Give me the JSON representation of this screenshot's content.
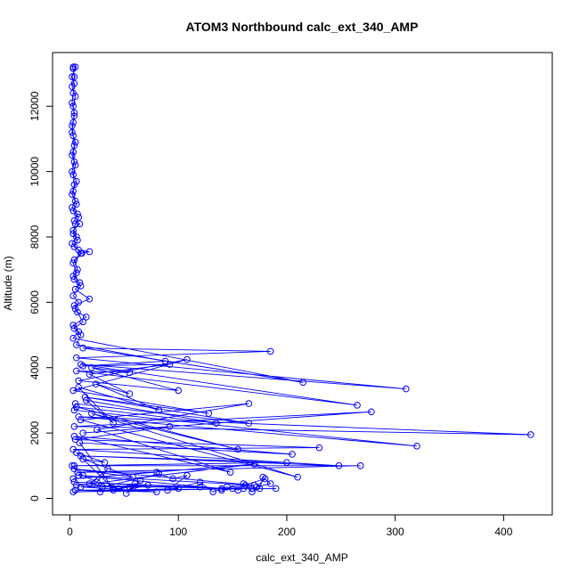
{
  "chart_data": {
    "type": "line",
    "title": "ATOM3 Northbound calc_ext_340_AMP",
    "xlabel": "calc_ext_340_AMP",
    "ylabel": "Altitude (m)",
    "xlim": [
      0,
      440
    ],
    "ylim": [
      0,
      13200
    ],
    "x_ticks": [
      0,
      100,
      200,
      300,
      400
    ],
    "y_ticks": [
      0,
      2000,
      4000,
      6000,
      8000,
      10000,
      12000
    ],
    "grid": false,
    "colors": {
      "series": "#0000ff",
      "axis": "#000000",
      "background": "#ffffff"
    },
    "series": [
      {
        "marker": "open-circle",
        "points": [
          [
            3,
            13200
          ],
          [
            5,
            13200
          ],
          [
            2,
            12900
          ],
          [
            4,
            12700
          ],
          [
            3,
            12400
          ],
          [
            2,
            12100
          ],
          [
            4,
            11800
          ],
          [
            3,
            11500
          ],
          [
            2,
            11200
          ],
          [
            5,
            10900
          ],
          [
            3,
            10600
          ],
          [
            4,
            10300
          ],
          [
            2,
            10000
          ],
          [
            6,
            9700
          ],
          [
            3,
            9400
          ],
          [
            5,
            9100
          ],
          [
            2,
            8900
          ],
          [
            7,
            8700
          ],
          [
            4,
            8500
          ],
          [
            9,
            8400
          ],
          [
            3,
            8200
          ],
          [
            6,
            8000
          ],
          [
            2,
            7800
          ],
          [
            8,
            7600
          ],
          [
            18,
            7550
          ],
          [
            10,
            7500
          ],
          [
            4,
            7300
          ],
          [
            7,
            7000
          ],
          [
            3,
            6800
          ],
          [
            9,
            6600
          ],
          [
            5,
            6400
          ],
          [
            18,
            6100
          ],
          [
            4,
            5900
          ],
          [
            7,
            5700
          ],
          [
            15,
            5550
          ],
          [
            3,
            5300
          ],
          [
            8,
            5100
          ],
          [
            3,
            4900
          ],
          [
            215,
            3550
          ],
          [
            12,
            4600
          ],
          [
            185,
            4500
          ],
          [
            6,
            4300
          ],
          [
            310,
            3350
          ],
          [
            10,
            4100
          ],
          [
            265,
            2850
          ],
          [
            6,
            3900
          ],
          [
            55,
            3850
          ],
          [
            20,
            4000
          ],
          [
            100,
            3300
          ],
          [
            8,
            3600
          ],
          [
            108,
            4250
          ],
          [
            3,
            3300
          ],
          [
            128,
            2600
          ],
          [
            14,
            3100
          ],
          [
            165,
            2300
          ],
          [
            5,
            2900
          ],
          [
            4,
            2700
          ],
          [
            320,
            1600
          ],
          [
            8,
            2500
          ],
          [
            425,
            1950
          ],
          [
            4,
            2200
          ],
          [
            278,
            2650
          ],
          [
            12,
            2000
          ],
          [
            92,
            2200
          ],
          [
            5,
            1800
          ],
          [
            230,
            1550
          ],
          [
            3,
            1500
          ],
          [
            248,
            1000
          ],
          [
            10,
            1300
          ],
          [
            200,
            1100
          ],
          [
            4,
            1000
          ],
          [
            268,
            1000
          ],
          [
            7,
            800
          ],
          [
            80,
            800
          ],
          [
            3,
            600
          ],
          [
            170,
            1050
          ],
          [
            6,
            400
          ],
          [
            160,
            300
          ],
          [
            3,
            200
          ],
          [
            100,
            300
          ]
        ]
      },
      {
        "marker": "open-circle",
        "points": [
          [
            3,
            13150
          ],
          [
            4,
            12900
          ],
          [
            2,
            12600
          ],
          [
            5,
            12300
          ],
          [
            3,
            12000
          ],
          [
            4,
            11700
          ],
          [
            2,
            11400
          ],
          [
            3,
            11100
          ],
          [
            4,
            10800
          ],
          [
            2,
            10500
          ],
          [
            5,
            10200
          ],
          [
            3,
            9900
          ],
          [
            4,
            9600
          ],
          [
            2,
            9300
          ],
          [
            6,
            9000
          ],
          [
            3,
            8800
          ],
          [
            8,
            8600
          ],
          [
            5,
            8400
          ],
          [
            3,
            8100
          ],
          [
            7,
            7900
          ],
          [
            4,
            7700
          ],
          [
            11,
            7500
          ],
          [
            3,
            7200
          ],
          [
            6,
            6900
          ],
          [
            4,
            6700
          ],
          [
            10,
            6500
          ],
          [
            3,
            6200
          ],
          [
            8,
            6000
          ],
          [
            5,
            5800
          ],
          [
            12,
            5400
          ],
          [
            4,
            5200
          ],
          [
            10,
            5000
          ],
          [
            6,
            4700
          ],
          [
            88,
            4200
          ],
          [
            12,
            4050
          ],
          [
            92,
            4100
          ],
          [
            18,
            3800
          ],
          [
            55,
            3200
          ],
          [
            24,
            3500
          ],
          [
            82,
            2700
          ],
          [
            8,
            3400
          ],
          [
            40,
            2300
          ],
          [
            15,
            3000
          ],
          [
            135,
            2300
          ],
          [
            6,
            2800
          ],
          [
            155,
            1500
          ],
          [
            20,
            2600
          ],
          [
            210,
            650
          ],
          [
            10,
            2400
          ],
          [
            165,
            2900
          ],
          [
            25,
            2100
          ],
          [
            148,
            800
          ],
          [
            4,
            1900
          ],
          [
            205,
            1350
          ],
          [
            9,
            1700
          ],
          [
            40,
            300
          ],
          [
            6,
            1400
          ],
          [
            32,
            1100
          ],
          [
            12,
            1200
          ],
          [
            58,
            650
          ],
          [
            4,
            900
          ],
          [
            170,
            400
          ],
          [
            8,
            700
          ],
          [
            140,
            300
          ],
          [
            4,
            500
          ],
          [
            120,
            350
          ],
          [
            10,
            350
          ],
          [
            80,
            200
          ],
          [
            5,
            250
          ],
          [
            190,
            300
          ]
        ]
      },
      {
        "marker": "open-circle",
        "points": [
          [
            2,
            1000
          ],
          [
            12,
            700
          ],
          [
            25,
            500
          ],
          [
            35,
            900
          ],
          [
            18,
            450
          ],
          [
            45,
            300
          ],
          [
            28,
            200
          ],
          [
            55,
            350
          ],
          [
            40,
            250
          ],
          [
            60,
            450
          ],
          [
            52,
            150
          ],
          [
            65,
            550
          ],
          [
            58,
            300
          ],
          [
            72,
            400
          ],
          [
            30,
            350
          ],
          [
            82,
            750
          ],
          [
            95,
            600
          ],
          [
            108,
            700
          ],
          [
            90,
            250
          ],
          [
            120,
            500
          ],
          [
            132,
            200
          ],
          [
            145,
            350
          ],
          [
            155,
            250
          ],
          [
            162,
            400
          ],
          [
            168,
            200
          ],
          [
            175,
            300
          ],
          [
            178,
            650
          ],
          [
            185,
            450
          ],
          [
            172,
            350
          ],
          [
            180,
            600
          ],
          [
            150,
            300
          ],
          [
            140,
            250
          ],
          [
            160,
            450
          ],
          [
            168,
            300
          ]
        ]
      }
    ]
  }
}
